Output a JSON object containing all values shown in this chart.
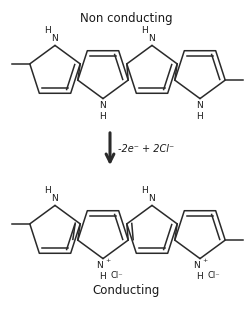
{
  "title_top": "Non conducting",
  "title_bottom": "Conducting",
  "arrow_label": "-2e⁻ + 2Cl⁻",
  "bg_color": "#ffffff",
  "line_color": "#2a2a2a",
  "text_color": "#1a1a1a",
  "figsize": [
    2.53,
    3.11
  ],
  "dpi": 100
}
